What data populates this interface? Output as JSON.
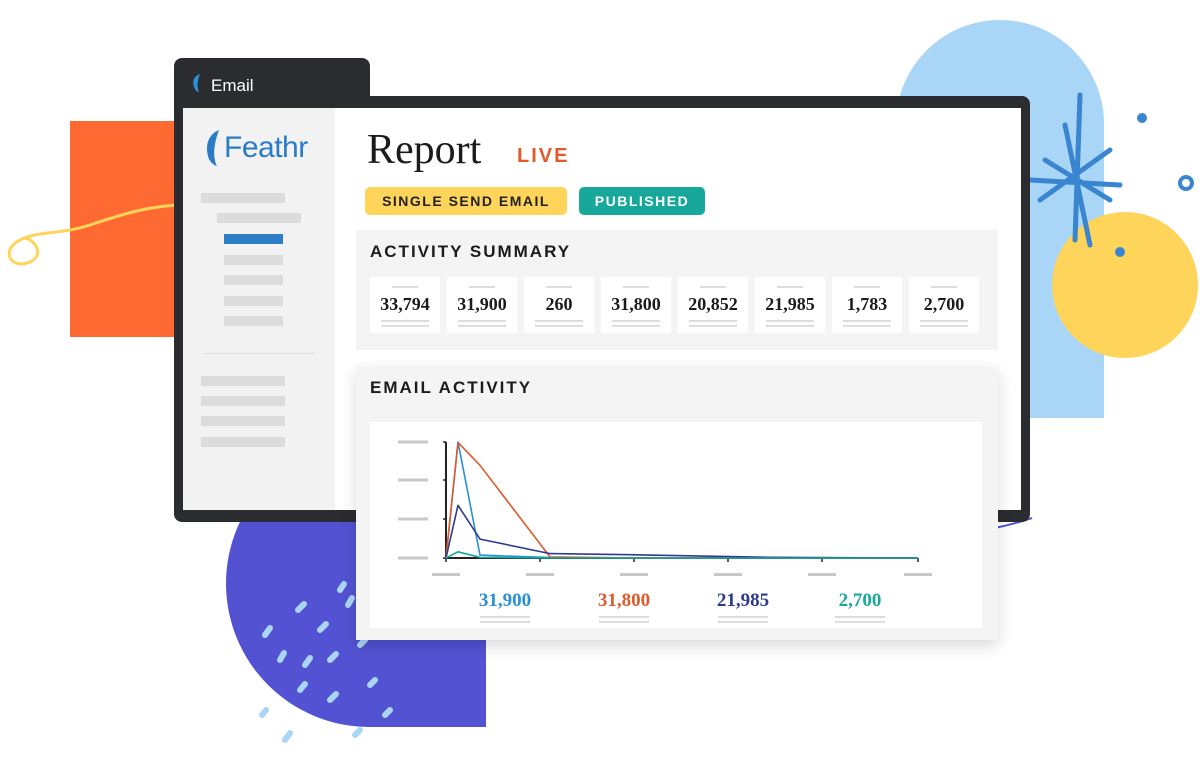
{
  "window": {
    "tab_title": "Email"
  },
  "brand": {
    "name": "Feathr",
    "color": "#2a7bc8"
  },
  "report": {
    "title": "Report",
    "status": "LIVE",
    "badges": [
      {
        "label": "SINGLE SEND EMAIL",
        "color": "#ffd45a"
      },
      {
        "label": "PUBLISHED",
        "color": "#17a89b"
      }
    ]
  },
  "activity_summary": {
    "title": "ACTIVITY SUMMARY",
    "stats": [
      "33,794",
      "31,900",
      "260",
      "31,800",
      "20,852",
      "21,985",
      "1,783",
      "2,700"
    ]
  },
  "email_activity": {
    "title": "EMAIL ACTIVITY",
    "legend": [
      {
        "value": "31,900",
        "color": "#2a8fd6"
      },
      {
        "value": "31,800",
        "color": "#e05a2b"
      },
      {
        "value": "21,985",
        "color": "#2e3a8f"
      },
      {
        "value": "2,700",
        "color": "#17a89b"
      }
    ]
  },
  "chart_data": {
    "type": "line",
    "title": "",
    "xlabel": "",
    "ylabel": "",
    "grid": false,
    "series": [
      {
        "values": [
          0,
          31900,
          800,
          120,
          30,
          10,
          0
        ],
        "color": "#2a8fd6"
      },
      {
        "values": [
          0,
          31800,
          25500,
          300,
          40,
          10,
          0
        ],
        "color": "#e05a2b"
      },
      {
        "values": [
          0,
          14500,
          5200,
          1200,
          900,
          200,
          0
        ],
        "color": "#2e3a8f"
      },
      {
        "values": [
          0,
          1700,
          200,
          40,
          10,
          0,
          0
        ],
        "color": "#17a89b"
      }
    ],
    "x": [
      0,
      1,
      2,
      3,
      4,
      5,
      6
    ],
    "ylim": [
      0,
      31900
    ]
  }
}
